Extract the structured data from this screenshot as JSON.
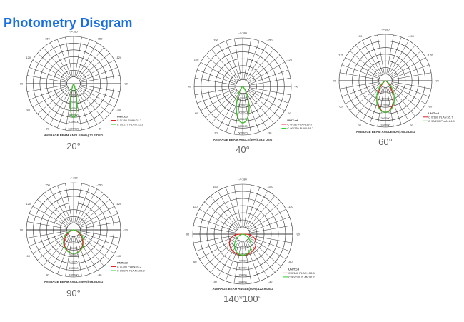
{
  "title": "Photometry Disgram",
  "angle_labels": [
    "-/+180",
    "150",
    "120",
    "90",
    "60",
    "30",
    "-30",
    "-60",
    "-90",
    "-120",
    "-150"
  ],
  "series_colors": {
    "c0": "#e02020",
    "c90": "#2ecc2e"
  },
  "chart_data": [
    {
      "type": "polar",
      "caption": "20°",
      "beam_text": "AVERAGE BEAM ANGLE(50%):21.2 DEG",
      "unit": "UNIT:cd",
      "legend": [
        "C 0/180 PLAN:21.2",
        "C 90/270 PLAN:21.3"
      ],
      "beam_angles": [
        21.2,
        21.3
      ],
      "peak_fraction": 0.72,
      "scale_labels": [
        "200000",
        "400000",
        "600000",
        "800000",
        "1000000",
        "1200000"
      ]
    },
    {
      "type": "polar",
      "caption": "40°",
      "beam_text": "AVERAGE BEAM ANGLE(50%):39.2 DEG",
      "unit": "UNIT:cd",
      "legend": [
        "C 0/180 PLAN:39.6",
        "C 90/270 PLAN:38.7"
      ],
      "beam_angles": [
        39.6,
        38.7
      ],
      "peak_fraction": 0.75,
      "scale_labels": [
        "100000",
        "200000",
        "300000",
        "400000",
        "500000",
        "600000"
      ]
    },
    {
      "type": "polar",
      "caption": "60°",
      "beam_text": "AVERAGE BEAM ANGLE(50%):60.3 DEG",
      "unit": "UNIT:cd",
      "legend": [
        "C 0/180 PLAN:55.7",
        "C 90/270 PLAN:64.9"
      ],
      "beam_angles": [
        55.7,
        64.9
      ],
      "peak_fraction": 0.68,
      "scale_labels": [
        "40000",
        "80000",
        "120000",
        "160000",
        "200000",
        "240000"
      ]
    },
    {
      "type": "polar",
      "caption": "90°",
      "beam_text": "AVERAGE BEAM ANGLE(50%):96.6 DEG",
      "unit": "UNIT:cd",
      "legend": [
        "C 0/180 PLAN:91.2",
        "C 90/270 PLAN:102.0"
      ],
      "beam_angles": [
        91.2,
        102.0
      ],
      "peak_fraction": 0.5,
      "scale_labels": [
        "30000",
        "60000",
        "90000",
        "120000",
        "150000",
        "180000"
      ]
    },
    {
      "type": "polar",
      "caption": "140*100°",
      "beam_text": "AVERAGE BEAM ANGLE(50%):122.9 DEG",
      "unit": "UNIT:cd",
      "legend": [
        "C 0/180 PLAN:153.5",
        "C 90/270 PLAN:92.2"
      ],
      "beam_angles": [
        153.5,
        92.2
      ],
      "peak_fraction": 0.42,
      "scale_labels": [
        "14000",
        "28000",
        "42000",
        "56000",
        "70000",
        "84000"
      ]
    }
  ]
}
